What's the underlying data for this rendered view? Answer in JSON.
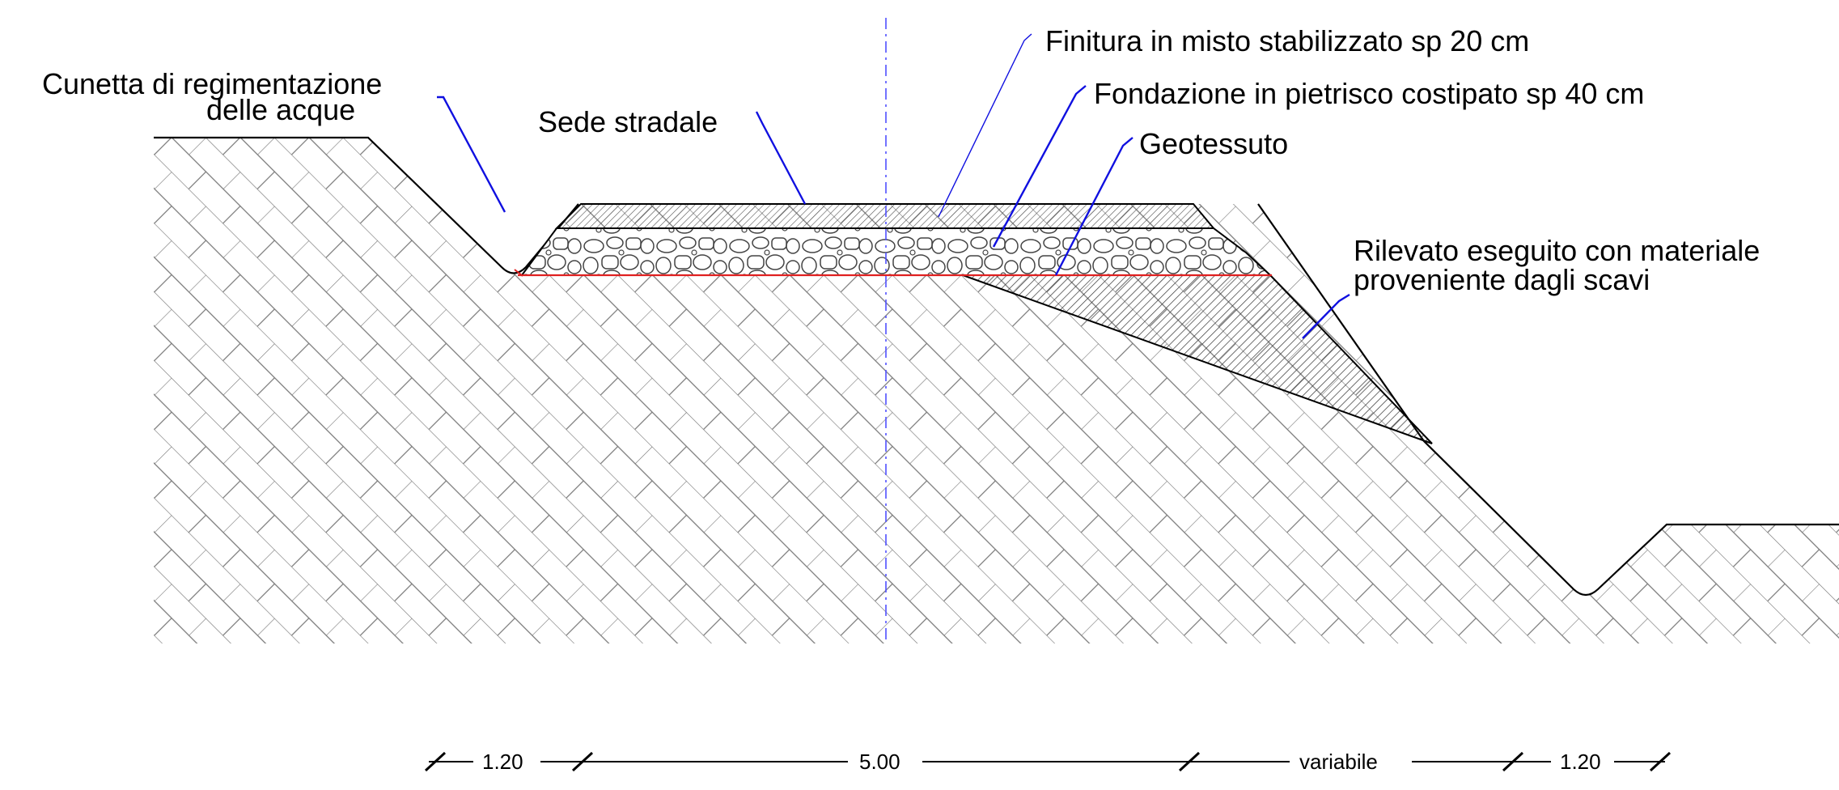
{
  "labels": {
    "cunetta_line1": "Cunetta di regimentazione",
    "cunetta_line2": "delle acque",
    "sede": "Sede stradale",
    "finitura": "Finitura in misto stabilizzato sp 20 cm",
    "fondazione": "Fondazione in pietrisco costipato sp 40 cm",
    "geotessuto": "Geotessuto",
    "rilevato_line1": "Rilevato eseguito con materiale",
    "rilevato_line2": "proveniente dagli scavi"
  },
  "dimensions": {
    "d1": "1.20",
    "d2": "5.00",
    "d3": "variabile",
    "d4": "1.20"
  },
  "colors": {
    "leader": "#1010e0",
    "geotextile": "#e02020",
    "axis": "#5050ff"
  }
}
